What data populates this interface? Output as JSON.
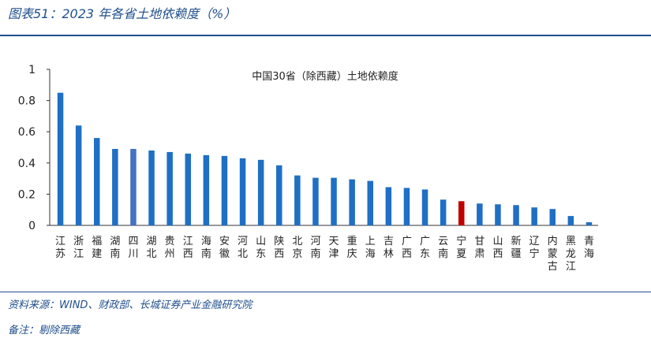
{
  "header": {
    "figure_title": "图表51：2023 年各省土地依赖度（%）"
  },
  "footer": {
    "source": "资料来源：WIND、财政部、长城证券产业金融研究院",
    "remark": "备注：剔除西藏"
  },
  "colors": {
    "default_bar": "#1f6fc5",
    "highlight_bar": "#4472c4",
    "ningxia_bar": "#c00000",
    "axis": "#333333",
    "accent": "#1f4e8c"
  },
  "chart_data": {
    "type": "bar",
    "title": "中国30省（除西藏）土地依赖度",
    "xlabel": "",
    "ylabel": "",
    "ylim": [
      0,
      1
    ],
    "yticks": [
      "1",
      "0.8",
      "0.6",
      "0.4",
      "0.2",
      "0"
    ],
    "ytick_values": [
      1,
      0.8,
      0.6,
      0.4,
      0.2,
      0
    ],
    "grid": false,
    "categories": [
      "江苏",
      "浙江",
      "福建",
      "湖南",
      "四川",
      "湖北",
      "贵州",
      "江西",
      "海南",
      "安徽",
      "河北",
      "山东",
      "陕西",
      "北京",
      "河南",
      "天津",
      "重庆",
      "上海",
      "吉林",
      "广西",
      "广东",
      "云南",
      "宁夏",
      "甘肃",
      "山西",
      "新疆",
      "辽宁",
      "内蒙古",
      "黑龙江",
      "青海"
    ],
    "values": [
      0.85,
      0.64,
      0.56,
      0.49,
      0.49,
      0.48,
      0.47,
      0.46,
      0.45,
      0.445,
      0.43,
      0.42,
      0.385,
      0.32,
      0.305,
      0.305,
      0.295,
      0.285,
      0.245,
      0.24,
      0.23,
      0.165,
      0.155,
      0.14,
      0.135,
      0.13,
      0.115,
      0.105,
      0.06,
      0.02
    ],
    "bar_colors": [
      "#1f6fc5",
      "#1f6fc5",
      "#1f6fc5",
      "#1f6fc5",
      "#4472c4",
      "#1f6fc5",
      "#1f6fc5",
      "#1f6fc5",
      "#1f6fc5",
      "#1f6fc5",
      "#1f6fc5",
      "#1f6fc5",
      "#1f6fc5",
      "#1f6fc5",
      "#1f6fc5",
      "#1f6fc5",
      "#1f6fc5",
      "#1f6fc5",
      "#1f6fc5",
      "#1f6fc5",
      "#1f6fc5",
      "#1f6fc5",
      "#c00000",
      "#1f6fc5",
      "#1f6fc5",
      "#1f6fc5",
      "#1f6fc5",
      "#1f6fc5",
      "#1f6fc5",
      "#1f6fc5"
    ]
  }
}
